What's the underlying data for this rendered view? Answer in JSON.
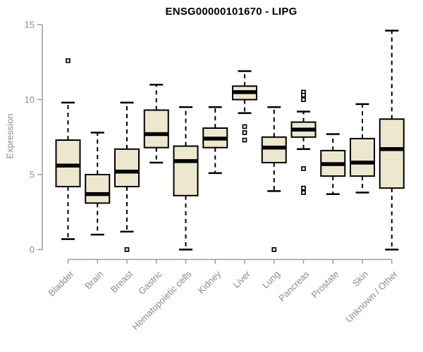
{
  "chart_data": {
    "type": "boxplot",
    "title": "ENSG00000101670 - LIPG",
    "ylabel": "Expression",
    "xlabel": "",
    "ylim": [
      0,
      15
    ],
    "yticks": [
      "0",
      "5",
      "10",
      "15"
    ],
    "ytick_values": [
      0,
      5,
      10,
      15
    ],
    "grid": false,
    "legend": "none",
    "colors": {
      "box_fill": "#EDE8CD",
      "box_border": "#000000",
      "median": "#000000",
      "whisker": "#000000",
      "axis_line": "#9c9c9c",
      "tick_label": "#8a8a8a",
      "title": "#000000"
    },
    "categories": [
      "Bladder",
      "Brain",
      "Breast",
      "Gastric",
      "Hematopoietic cells",
      "Kidney",
      "Liver",
      "Lung",
      "Pancreas",
      "Prostate",
      "Skin",
      "Unknown / Other"
    ],
    "series": [
      {
        "category": "Bladder",
        "whisker_low": 0.7,
        "q1": 4.2,
        "median": 5.6,
        "q3": 7.3,
        "whisker_high": 9.8,
        "outliers": [
          12.6
        ]
      },
      {
        "category": "Brain",
        "whisker_low": 1.0,
        "q1": 3.1,
        "median": 3.7,
        "q3": 5.0,
        "whisker_high": 7.8,
        "outliers": []
      },
      {
        "category": "Breast",
        "whisker_low": 1.2,
        "q1": 4.2,
        "median": 5.2,
        "q3": 6.7,
        "whisker_high": 9.8,
        "outliers": [
          0
        ]
      },
      {
        "category": "Gastric",
        "whisker_low": 5.8,
        "q1": 6.8,
        "median": 7.7,
        "q3": 9.3,
        "whisker_high": 11.0,
        "outliers": []
      },
      {
        "category": "Hematopoietic cells",
        "whisker_low": 0.0,
        "q1": 3.6,
        "median": 5.9,
        "q3": 6.9,
        "whisker_high": 9.5,
        "outliers": []
      },
      {
        "category": "Kidney",
        "whisker_low": 5.1,
        "q1": 6.8,
        "median": 7.4,
        "q3": 8.1,
        "whisker_high": 9.5,
        "outliers": []
      },
      {
        "category": "Liver",
        "whisker_low": 9.1,
        "q1": 10.0,
        "median": 10.5,
        "q3": 10.9,
        "whisker_high": 11.9,
        "outliers": [
          8.2,
          7.8,
          7.3
        ]
      },
      {
        "category": "Lung",
        "whisker_low": 3.9,
        "q1": 5.8,
        "median": 6.8,
        "q3": 7.5,
        "whisker_high": 9.5,
        "outliers": [
          0
        ]
      },
      {
        "category": "Pancreas",
        "whisker_low": 6.7,
        "q1": 7.5,
        "median": 8.0,
        "q3": 8.5,
        "whisker_high": 9.2,
        "outliers": [
          10.5,
          10.3,
          10.0,
          5.4,
          4.1,
          3.8
        ]
      },
      {
        "category": "Prostate",
        "whisker_low": 3.7,
        "q1": 4.9,
        "median": 5.7,
        "q3": 6.6,
        "whisker_high": 7.7,
        "outliers": []
      },
      {
        "category": "Skin",
        "whisker_low": 3.8,
        "q1": 4.9,
        "median": 5.8,
        "q3": 7.4,
        "whisker_high": 9.7,
        "outliers": []
      },
      {
        "category": "Unknown / Other",
        "whisker_low": 0.0,
        "q1": 4.1,
        "median": 6.7,
        "q3": 8.7,
        "whisker_high": 14.6,
        "outliers": []
      }
    ]
  }
}
